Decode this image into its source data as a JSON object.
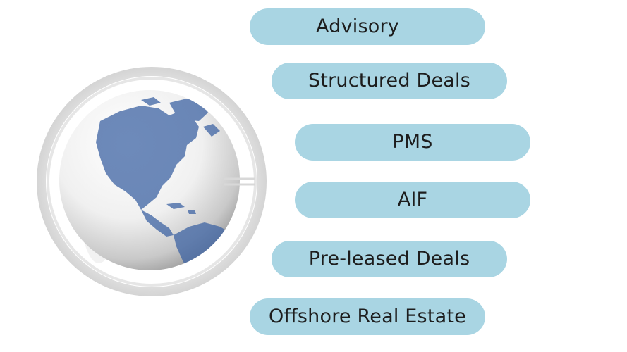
{
  "items": [
    {
      "label": "Advisory"
    },
    {
      "label": "Structured Deals"
    },
    {
      "label": "PMS"
    },
    {
      "label": "AIF"
    },
    {
      "label": "Pre-leased Deals"
    },
    {
      "label": "Offshore Real Estate"
    }
  ],
  "colors": {
    "pill": "#a9d5e3",
    "text": "#1d1d1d",
    "ring": "#dcdcdc",
    "continent": "#3d63a3"
  },
  "icon": "globe-icon"
}
